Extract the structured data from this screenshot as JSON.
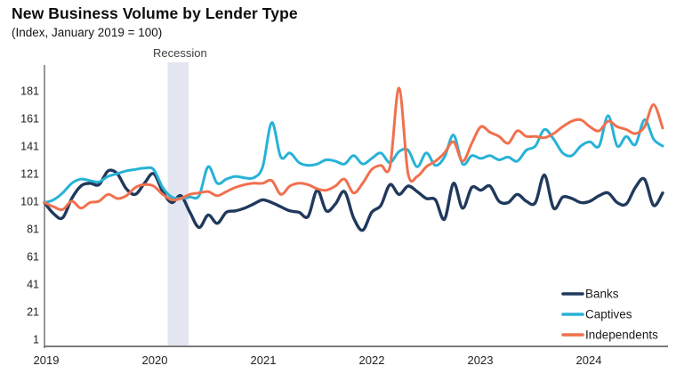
{
  "title": "New Business Volume by Lender Type",
  "subtitle": "(Index, January 2019 = 100)",
  "annotations": {
    "recession_label": "Recession",
    "recession_band_color": "#e3e6f1"
  },
  "chart_data": {
    "type": "line",
    "title": "New Business Volume by Lender Type",
    "subtitle": "(Index, January 2019 = 100)",
    "x_unit": "month",
    "x_start": "2019-01",
    "x_end": "2024-09",
    "x_tick_labels": [
      "2019",
      "2020",
      "2021",
      "2022",
      "2023",
      "2024"
    ],
    "y_ticks": [
      1,
      21,
      41,
      61,
      81,
      101,
      121,
      141,
      161,
      181
    ],
    "ylim": [
      1,
      181
    ],
    "grid": false,
    "legend_position": "inside-bottom-right",
    "recession_band": {
      "from": "2020-02",
      "to": "2020-04"
    },
    "series": [
      {
        "name": "Banks",
        "color": "#20395c",
        "values": [
          100,
          92,
          89,
          103,
          112,
          114,
          113,
          123,
          121,
          110,
          106,
          114,
          121,
          108,
          100,
          105,
          93,
          82,
          91,
          85,
          93,
          94,
          96,
          99,
          102,
          100,
          97,
          94,
          93,
          90,
          109,
          94,
          99,
          108,
          89,
          80,
          93,
          98,
          113,
          106,
          112,
          108,
          103,
          102,
          88,
          114,
          96,
          111,
          109,
          112,
          101,
          100,
          106,
          101,
          100,
          120,
          96,
          104,
          103,
          100,
          101,
          105,
          107,
          100,
          99,
          111,
          117,
          98,
          107
        ]
      },
      {
        "name": "Captives",
        "color": "#27b2d6",
        "values": [
          100,
          102,
          107,
          114,
          117,
          116,
          115,
          119,
          121,
          123,
          124,
          125,
          124,
          111,
          104,
          103,
          104,
          105,
          126,
          114,
          117,
          119,
          118,
          118,
          126,
          158,
          133,
          136,
          129,
          127,
          128,
          131,
          130,
          128,
          134,
          128,
          132,
          136,
          129,
          137,
          138,
          126,
          136,
          127,
          133,
          149,
          128,
          134,
          132,
          134,
          131,
          133,
          130,
          138,
          141,
          153,
          146,
          136,
          134,
          141,
          144,
          141,
          163,
          141,
          148,
          142,
          160,
          146,
          141
        ]
      },
      {
        "name": "Independents",
        "color": "#f1704e",
        "values": [
          100,
          97,
          95,
          101,
          96,
          100,
          101,
          106,
          103,
          105,
          111,
          113,
          112,
          106,
          102,
          103,
          106,
          107,
          108,
          105,
          108,
          111,
          113,
          114,
          114,
          116,
          106,
          112,
          114,
          113,
          110,
          109,
          112,
          117,
          107,
          114,
          124,
          127,
          126,
          183,
          121,
          119,
          126,
          130,
          136,
          144,
          130,
          143,
          155,
          151,
          148,
          143,
          152,
          148,
          148,
          147,
          150,
          155,
          159,
          160,
          155,
          152,
          159,
          155,
          153,
          150,
          155,
          171,
          154
        ]
      }
    ]
  }
}
